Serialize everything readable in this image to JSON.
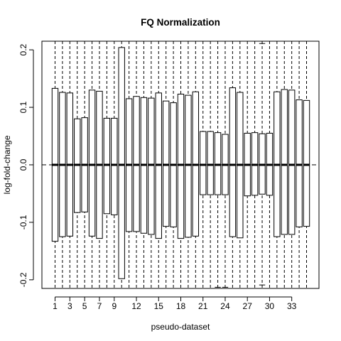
{
  "chart_data": {
    "type": "boxplot",
    "title": "FQ Normalization",
    "xlabel": "pseudo-dataset",
    "ylabel": "log-fold-change",
    "ylim": [
      -0.215,
      0.215
    ],
    "yticks": [
      -0.2,
      -0.1,
      0.0,
      0.1,
      0.2
    ],
    "ytick_labels": [
      "-0.2",
      "-0.1",
      "0.0",
      "0.1",
      "0.2"
    ],
    "xticks": [
      1,
      3,
      5,
      7,
      9,
      12,
      15,
      18,
      21,
      24,
      27,
      30,
      33
    ],
    "xtick_labels": [
      "1",
      "3",
      "5",
      "7",
      "9",
      "12",
      "15",
      "18",
      "21",
      "24",
      "27",
      "30",
      "33"
    ],
    "reference_line": 0.0,
    "colors": {
      "box_fill": "#ffffff",
      "stroke": "#000000"
    },
    "boxes": [
      {
        "x": 1,
        "q1": -0.133,
        "median": 0.0,
        "q3": 0.133
      },
      {
        "x": 2,
        "q1": -0.125,
        "median": 0.0,
        "q3": 0.126
      },
      {
        "x": 3,
        "q1": -0.124,
        "median": 0.0,
        "q3": 0.125
      },
      {
        "x": 4,
        "q1": -0.083,
        "median": 0.0,
        "q3": 0.08
      },
      {
        "x": 5,
        "q1": -0.082,
        "median": 0.0,
        "q3": 0.082
      },
      {
        "x": 6,
        "q1": -0.124,
        "median": 0.0,
        "q3": 0.13
      },
      {
        "x": 7,
        "q1": -0.128,
        "median": 0.0,
        "q3": 0.128
      },
      {
        "x": 8,
        "q1": -0.085,
        "median": 0.0,
        "q3": 0.081
      },
      {
        "x": 9,
        "q1": -0.087,
        "median": 0.0,
        "q3": 0.081
      },
      {
        "x": 10,
        "q1": -0.198,
        "median": 0.0,
        "q3": 0.204
      },
      {
        "x": 11,
        "q1": -0.116,
        "median": 0.0,
        "q3": 0.115
      },
      {
        "x": 12,
        "q1": -0.116,
        "median": 0.0,
        "q3": 0.119
      },
      {
        "x": 13,
        "q1": -0.119,
        "median": 0.0,
        "q3": 0.117
      },
      {
        "x": 14,
        "q1": -0.121,
        "median": 0.0,
        "q3": 0.116
      },
      {
        "x": 15,
        "q1": -0.128,
        "median": 0.0,
        "q3": 0.125
      },
      {
        "x": 16,
        "q1": -0.107,
        "median": 0.0,
        "q3": 0.111
      },
      {
        "x": 17,
        "q1": -0.108,
        "median": 0.0,
        "q3": 0.108
      },
      {
        "x": 18,
        "q1": -0.128,
        "median": 0.0,
        "q3": 0.123
      },
      {
        "x": 19,
        "q1": -0.126,
        "median": 0.0,
        "q3": 0.121
      },
      {
        "x": 20,
        "q1": -0.124,
        "median": 0.0,
        "q3": 0.127
      },
      {
        "x": 21,
        "q1": -0.052,
        "median": 0.0,
        "q3": 0.058
      },
      {
        "x": 22,
        "q1": -0.052,
        "median": 0.0,
        "q3": 0.058
      },
      {
        "x": 23,
        "q1": -0.052,
        "median": 0.0,
        "q3": 0.056
      },
      {
        "x": 24,
        "q1": -0.052,
        "median": 0.0,
        "q3": 0.053
      },
      {
        "x": 25,
        "q1": -0.125,
        "median": 0.0,
        "q3": 0.134
      },
      {
        "x": 26,
        "q1": -0.127,
        "median": 0.0,
        "q3": 0.126
      },
      {
        "x": 27,
        "q1": -0.054,
        "median": 0.0,
        "q3": 0.055
      },
      {
        "x": 28,
        "q1": -0.053,
        "median": 0.0,
        "q3": 0.056
      },
      {
        "x": 29,
        "q1": -0.051,
        "median": 0.0,
        "q3": 0.054
      },
      {
        "x": 30,
        "q1": -0.053,
        "median": 0.0,
        "q3": 0.055
      },
      {
        "x": 31,
        "q1": -0.125,
        "median": 0.0,
        "q3": 0.127
      },
      {
        "x": 32,
        "q1": -0.121,
        "median": 0.0,
        "q3": 0.131
      },
      {
        "x": 33,
        "q1": -0.121,
        "median": 0.0,
        "q3": 0.13
      },
      {
        "x": 34,
        "q1": -0.108,
        "median": 0.0,
        "q3": 0.113
      },
      {
        "x": 35,
        "q1": -0.107,
        "median": 0.0,
        "q3": 0.112
      }
    ],
    "whisker_caps": [
      {
        "x": 23,
        "value": -0.213
      },
      {
        "x": 24,
        "value": -0.213
      },
      {
        "x": 29,
        "value": 0.211
      },
      {
        "x": 29,
        "value": -0.209
      }
    ]
  }
}
